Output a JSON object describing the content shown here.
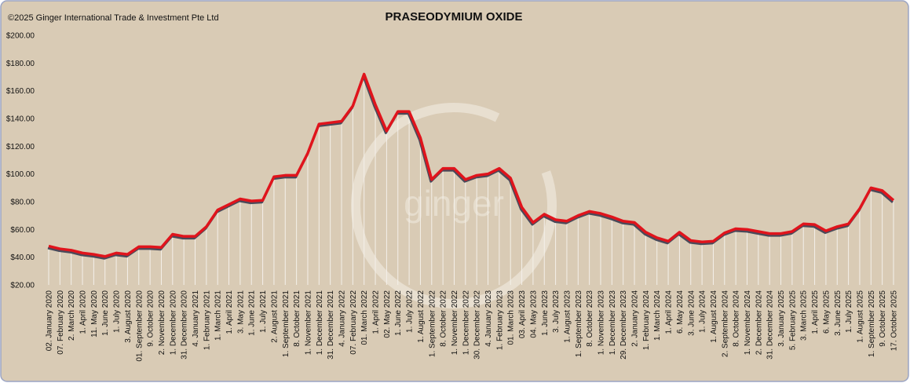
{
  "chart_data": {
    "type": "line",
    "title": "PRASEODYMIUM OXIDE",
    "copyright": "©2025 Ginger International Trade & Investment Pte Ltd",
    "watermark": "ginger",
    "categories": [
      "02. January 2020",
      "07. February 2020",
      "2. March 2020",
      "1. April 2020",
      "11. May 2020",
      "1. June 2020",
      "1. July 2020",
      "3. August 2020",
      "01. September 2020",
      "9. October 2020",
      "2. November 2020",
      "1. December 2020",
      "31. December 2020",
      "4. January 2021",
      "1. February 2021",
      "1. March 2021",
      "1. April 2021",
      "3. May 2021",
      "1. June 2021",
      "1. July 2021",
      "2. August 2021",
      "1. September 2021",
      "8. October 2021",
      "1. November 2021",
      "1. December 2021",
      "31. December 2021",
      "4. January 2022",
      "07. February 2022",
      "01. March 2022",
      "1. April 2022",
      "02. May 2022",
      "1. June 2022",
      "1. July 2022",
      "1. August 2022",
      "1. September 2022",
      "8. October 2022",
      "1. November 2022",
      "1. December 2022",
      "30. December 2022",
      "4. January 2023",
      "1. February 2023",
      "01. March 2023",
      "03. April 2023",
      "04. May 2023",
      "1. June 2023",
      "3. July 2023",
      "1. August 2023",
      "1. September 2023",
      "8. October 2023",
      "1. November 2023",
      "1. December 2023",
      "29. December 2023",
      "2. January 2024",
      "1. February 2024",
      "1. March 2024",
      "1. April 2024",
      "6. May 2024",
      "3. June 2024",
      "1. July 2024",
      "1. August 2024",
      "2. September 2024",
      "8. October 2024",
      "1. November 2024",
      "2. December 2024",
      "31. December 2024",
      "3. January 2025",
      "5. February 2025",
      "3. March 2025",
      "1. April 2025",
      "6. May 2025",
      "3. June 2025",
      "1. July 2025",
      "1. August 2025",
      "1. September 2025",
      "9. October 2025",
      "17. October 2025"
    ],
    "series": [
      {
        "name": "Praseodymium Oxide",
        "color": "#e0141c",
        "values": [
          48,
          46,
          45,
          43,
          42,
          40.5,
          43,
          42,
          47.5,
          47.5,
          47,
          56.5,
          55,
          55,
          62,
          74,
          78,
          82,
          80.5,
          81,
          98,
          99,
          99,
          115,
          136,
          137,
          138,
          149,
          172,
          150,
          131,
          145,
          145,
          126,
          96,
          104,
          104,
          96,
          99,
          100,
          104,
          97,
          76,
          65,
          71,
          67,
          66,
          70,
          73,
          71.5,
          69,
          66,
          65,
          58,
          54,
          51.5,
          58,
          52,
          51,
          51.5,
          57.5,
          60.5,
          60,
          58.5,
          57,
          57,
          58.5,
          64,
          63.5,
          59,
          62,
          64,
          75,
          90,
          88,
          81
        ]
      }
    ],
    "ylim": [
      20,
      200
    ],
    "yticks": [
      {
        "value": 20,
        "label": "$20.00"
      },
      {
        "value": 40,
        "label": "$40.00"
      },
      {
        "value": 60,
        "label": "$60.00"
      },
      {
        "value": 80,
        "label": "$80.00"
      },
      {
        "value": 100,
        "label": "$100.00"
      },
      {
        "value": 120,
        "label": "$120.00"
      },
      {
        "value": 140,
        "label": "$140.00"
      },
      {
        "value": 160,
        "label": "$160.00"
      },
      {
        "value": 180,
        "label": "$180.00"
      },
      {
        "value": 200,
        "label": "$200.00"
      }
    ],
    "grid": false
  }
}
